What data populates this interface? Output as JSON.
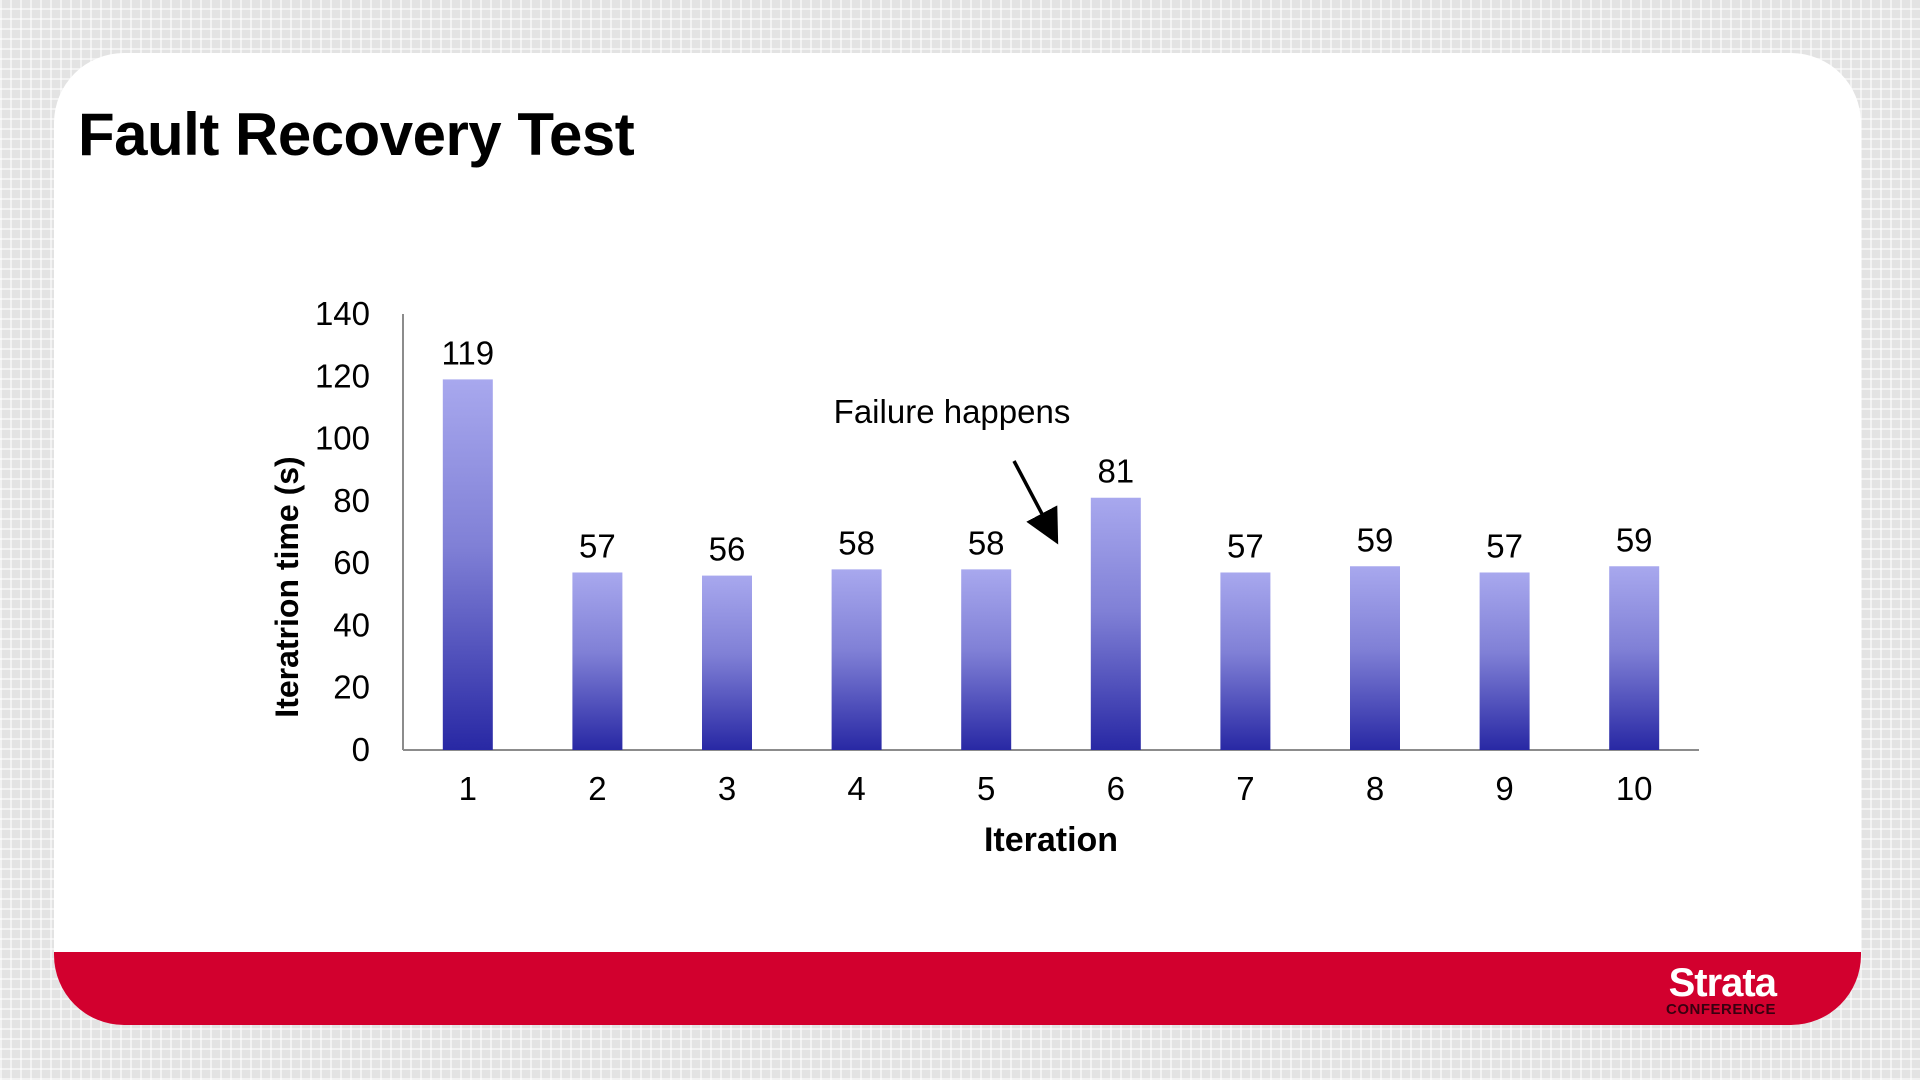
{
  "slide": {
    "title": "Fault Recovery Test",
    "logo": {
      "word": "Strata",
      "sub": "CONFERENCE"
    }
  },
  "colors": {
    "band": "#d2002e",
    "bar_top": "#a8a8ee",
    "bar_bottom": "#2828a4"
  },
  "chart_data": {
    "type": "bar",
    "title": "",
    "xlabel": "Iteration",
    "ylabel": "Iteratrion time (s)",
    "categories": [
      "1",
      "2",
      "3",
      "4",
      "5",
      "6",
      "7",
      "8",
      "9",
      "10"
    ],
    "values": [
      119,
      57,
      56,
      58,
      58,
      81,
      57,
      59,
      57,
      59
    ],
    "data_labels": [
      "119",
      "57",
      "56",
      "58",
      "58",
      "81",
      "57",
      "59",
      "57",
      "59"
    ],
    "ylim": [
      0,
      140
    ],
    "yticks": [
      0,
      20,
      40,
      60,
      80,
      100,
      120,
      140
    ],
    "grid": false,
    "legend": "none",
    "annotation": {
      "text": "Failure happens",
      "points_to_category": "6"
    }
  }
}
